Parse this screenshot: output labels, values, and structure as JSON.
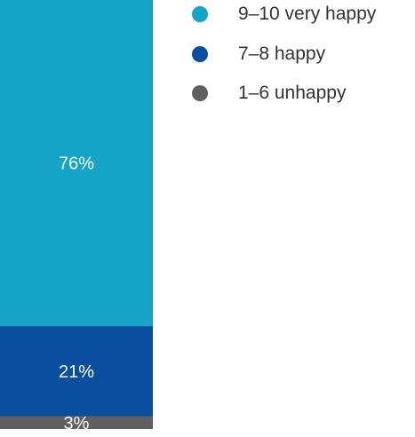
{
  "chart_data": {
    "type": "bar",
    "stacked": true,
    "categories": [
      ""
    ],
    "series": [
      {
        "name": "9–10 very happy",
        "values": [
          76
        ],
        "color": "#15a3c7",
        "label": "76%"
      },
      {
        "name": "7–8 happy",
        "values": [
          21
        ],
        "color": "#0a4ea0",
        "label": "21%"
      },
      {
        "name": "1–6 unhappy",
        "values": [
          3
        ],
        "color": "#5f5f61",
        "label": "3%"
      }
    ],
    "ylim": [
      0,
      100
    ],
    "legend_position": "top-right",
    "grid": false
  }
}
